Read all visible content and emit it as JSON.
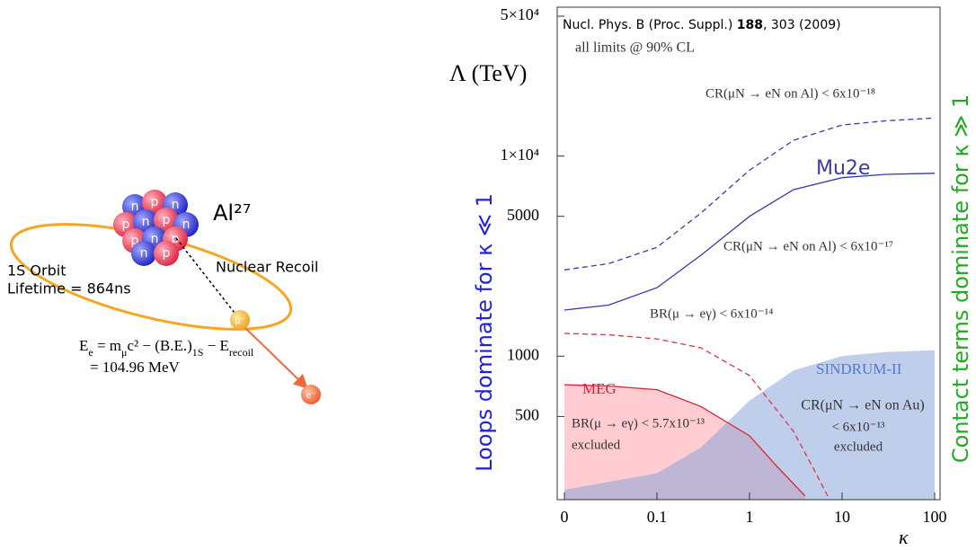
{
  "diagram": {
    "nucleus_label": "Al²⁷",
    "nucleons": [
      "n",
      "p",
      "n",
      "p",
      "n",
      "p",
      "n",
      "p",
      "n",
      "p",
      "n",
      "p"
    ],
    "orbit_label": "1S Orbit",
    "lifetime": "Lifetime = 864ns",
    "recoil_label": "Nuclear Recoil",
    "muon": "μ⁻",
    "electron": "e⁻",
    "equation_line1": [
      "E",
      "e",
      " = m",
      "μ",
      "c² − (B.E.)",
      "1S",
      " − E",
      "recoil"
    ],
    "equation_line2": "= 104.96 MeV"
  },
  "chart_data": {
    "type": "line",
    "log_x": true,
    "log_y": true,
    "citation": [
      "Nucl. Phys. B (Proc. Suppl.) ",
      "188",
      ", 303 (2009)"
    ],
    "note": "all limits @ 90% CL",
    "y_label": "Λ (TeV)",
    "x_label": "κ",
    "left_side_label": "Loops dominate for κ ≪ 1",
    "right_side_label": "Contact terms dominate for κ ≫ 1",
    "annotations": [
      "CR(μN → eN on Al) < 6x10⁻¹⁸",
      "CR(μN → eN on Al) < 6x10⁻¹⁷",
      "BR(μ → eγ) < 6x10⁻¹⁴",
      "BR(μ → eγ) < 5.7x10⁻¹³",
      "excluded",
      "CR(μN → eN on Au)",
      "< 6x10⁻¹³",
      "excluded"
    ],
    "xlim": [
      0.01,
      100
    ],
    "ylim": [
      200,
      50000
    ],
    "xticks": [
      {
        "value": 0.01,
        "label": "0"
      },
      0.1,
      1,
      10,
      100
    ],
    "yticks": [
      {
        "value": 50000,
        "label": "5×10⁴"
      },
      {
        "value": 10000,
        "label": "1×10⁴"
      },
      5000,
      1000,
      500
    ],
    "series": [
      {
        "name": "Mu2e",
        "color": "#3a3aaa",
        "dashed": false,
        "x": [
          0.01,
          0.03,
          0.1,
          0.3,
          1,
          3,
          10,
          30,
          100
        ],
        "values": [
          1700,
          1800,
          2200,
          3200,
          5000,
          6800,
          7800,
          8100,
          8200
        ]
      },
      {
        "color": "#3a3aaa",
        "dashed": true,
        "x": [
          0.01,
          0.03,
          0.1,
          0.3,
          1,
          3,
          10,
          30,
          100
        ],
        "values": [
          2700,
          2900,
          3500,
          5200,
          8500,
          12000,
          14300,
          15000,
          15500
        ]
      },
      {
        "color": "#dd3344",
        "dashed": true,
        "x": [
          0.01,
          0.03,
          0.1,
          0.3,
          1,
          3,
          5,
          7
        ],
        "values": [
          1300,
          1280,
          1220,
          1100,
          800,
          420,
          270,
          200
        ]
      },
      {
        "name": "MEG",
        "color": "#dd2233",
        "dashed": false,
        "fill": "#ff9aa6",
        "x": [
          0.01,
          0.03,
          0.1,
          0.3,
          1,
          2,
          4
        ],
        "values": [
          720,
          710,
          680,
          560,
          400,
          280,
          200
        ]
      },
      {
        "name": "SINDRUM-II",
        "color": "#6f8fd0",
        "fill": "#7f9fd8",
        "line": false,
        "x": [
          0.01,
          0.1,
          0.3,
          1,
          3,
          10,
          30,
          100
        ],
        "values": [
          215,
          260,
          350,
          600,
          850,
          1000,
          1050,
          1070
        ]
      }
    ]
  }
}
